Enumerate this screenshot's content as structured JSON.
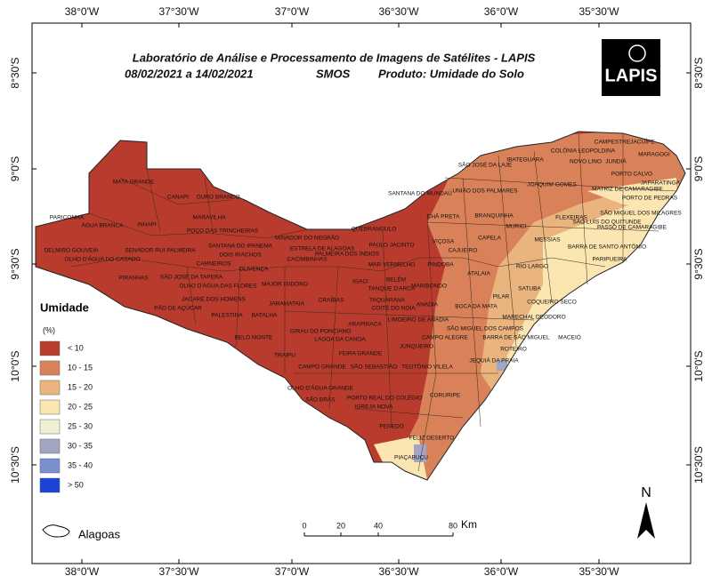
{
  "header": {
    "title": "Laboratório de Análise e Processamento de Imagens de Satélites - LAPIS",
    "dates": "08/02/2021  a  14/02/2021",
    "sensor": "SMOS",
    "product": "Produto: Umidade do Solo",
    "logo": "LAPIS"
  },
  "graticule": {
    "longitudes": [
      "38°0'W",
      "37°30'W",
      "37°0'W",
      "36°30'W",
      "36°0'W",
      "35°30'W"
    ],
    "latitudes": [
      "8°30'S",
      "9°0'S",
      "9°30'S",
      "10°0'S",
      "10°30'S"
    ]
  },
  "legend": {
    "title": "Umidade",
    "unit": "(%)",
    "items": [
      {
        "label": "< 10",
        "color": "#b83b2e"
      },
      {
        "label": "10 - 15",
        "color": "#d9825a"
      },
      {
        "label": "15 - 20",
        "color": "#eab47f"
      },
      {
        "label": "20 - 25",
        "color": "#fbe5b0"
      },
      {
        "label": "25 - 30",
        "color": "#eef0d3"
      },
      {
        "label": "30 - 35",
        "color": "#a0a6c4"
      },
      {
        "label": "35 - 40",
        "color": "#7a8fd0"
      },
      {
        "label": "> 50",
        "color": "#1a44d6"
      }
    ],
    "boundary": "Alagoas"
  },
  "scale_bar": {
    "ticks": [
      "0",
      "20",
      "40",
      "80"
    ],
    "unit": "Km"
  },
  "north_arrow": "N",
  "municipalities": [
    "MATA GRANDE",
    "CANAPI",
    "OURO BRANCO",
    "PARICONHA",
    "ÁGUA BRANCA",
    "INHAPI",
    "MARAVILHA",
    "POÇO DAS TRINCHEIRAS",
    "DELMIRO GOUVEIA",
    "OLHO D'ÁGUA DO CASADO",
    "SENADOR RUI PALMEIRA",
    "SANTANA DO IPANEMA",
    "DOIS RIACHOS",
    "CARNEIROS",
    "OLIVENÇA",
    "PIRANHAS",
    "SÃO JOSÉ DA TAPERA",
    "OLHO D'ÁGUA DAS FLORES",
    "MAJOR ISIDORO",
    "JACARÉ DOS HOMENS",
    "PÃO DE AÇÚCAR",
    "PALESTINA",
    "BATALHA",
    "JARAMATAIA",
    "BELO MONTE",
    "TRAIPU",
    "CRAÍBAS",
    "GIRAU DO PONCIANO",
    "LAGOA DA CANOA",
    "CACIMBINHAS",
    "MINADOR DO NEGRÃO",
    "ESTRELA DE ALAGOAS",
    "PALMEIRA DOS ÍNDIOS",
    "QUEBRANGULO",
    "IGACI",
    "BELÉM",
    "TANQUE D'ARCA",
    "MAR VERMELHO",
    "PINDOBA",
    "PAULO JACINTO",
    "VIÇOSA",
    "CAJUEIRO",
    "CHÃ PRETA",
    "SANTANA DO MUNDAÚ",
    "SÃO JOSÉ DA LAJE",
    "UNIÃO DOS PALMARES",
    "IBATEGUARA",
    "COLÔNIA LEOPOLDINA",
    "CAMPESTRE",
    "JACUÍPE",
    "NOVO LINO",
    "JUNDIÁ",
    "MARAGOGI",
    "JOAQUIM GOMES",
    "PORTO CALVO",
    "MATRIZ DE CAMARAGIBE",
    "JAPARATINGA",
    "PORTO DE PEDRAS",
    "BRANQUINHA",
    "MURICI",
    "FLEXEIRAS",
    "SÃO LUÍS DO QUITUNDE",
    "SÃO MIGUEL DOS MILAGRES",
    "PASSO DE CAMARAGIBE",
    "MESSIAS",
    "CAPELA",
    "BARRA DE SANTO ANTÔNIO",
    "PARIPUEIRA",
    "ATALAIA",
    "RIO LARGO",
    "MARIBONDO",
    "PILAR",
    "SATUBA",
    "ANADIA",
    "TAQUARANA",
    "COITÉ DO NÓIA",
    "BOCA DA MATA",
    "COQUEIRO SECO",
    "MACEIÓ",
    "LIMOEIRO DE ANADIA",
    "ARAPIRACA",
    "MARECHAL DEODORO",
    "SÃO MIGUEL DOS CAMPOS",
    "CAMPO ALEGRE",
    "BARRA DE SÃO MIGUEL",
    "JUNQUEIRO",
    "ROTEIRO",
    "FEIRA GRANDE",
    "CAMPO GRANDE",
    "SÃO SEBASTIÃO",
    "TEOTÔNIO VILELA",
    "JEQUIÁ DA PRAIA",
    "OLHO D'ÁGUA GRANDE",
    "SÃO BRÁS",
    "PORTO REAL DO COLÉGIO",
    "IGREJA NOVA",
    "CORURIPE",
    "PENEDO",
    "FELIZ DESERTO",
    "PIAÇABUÇU"
  ]
}
